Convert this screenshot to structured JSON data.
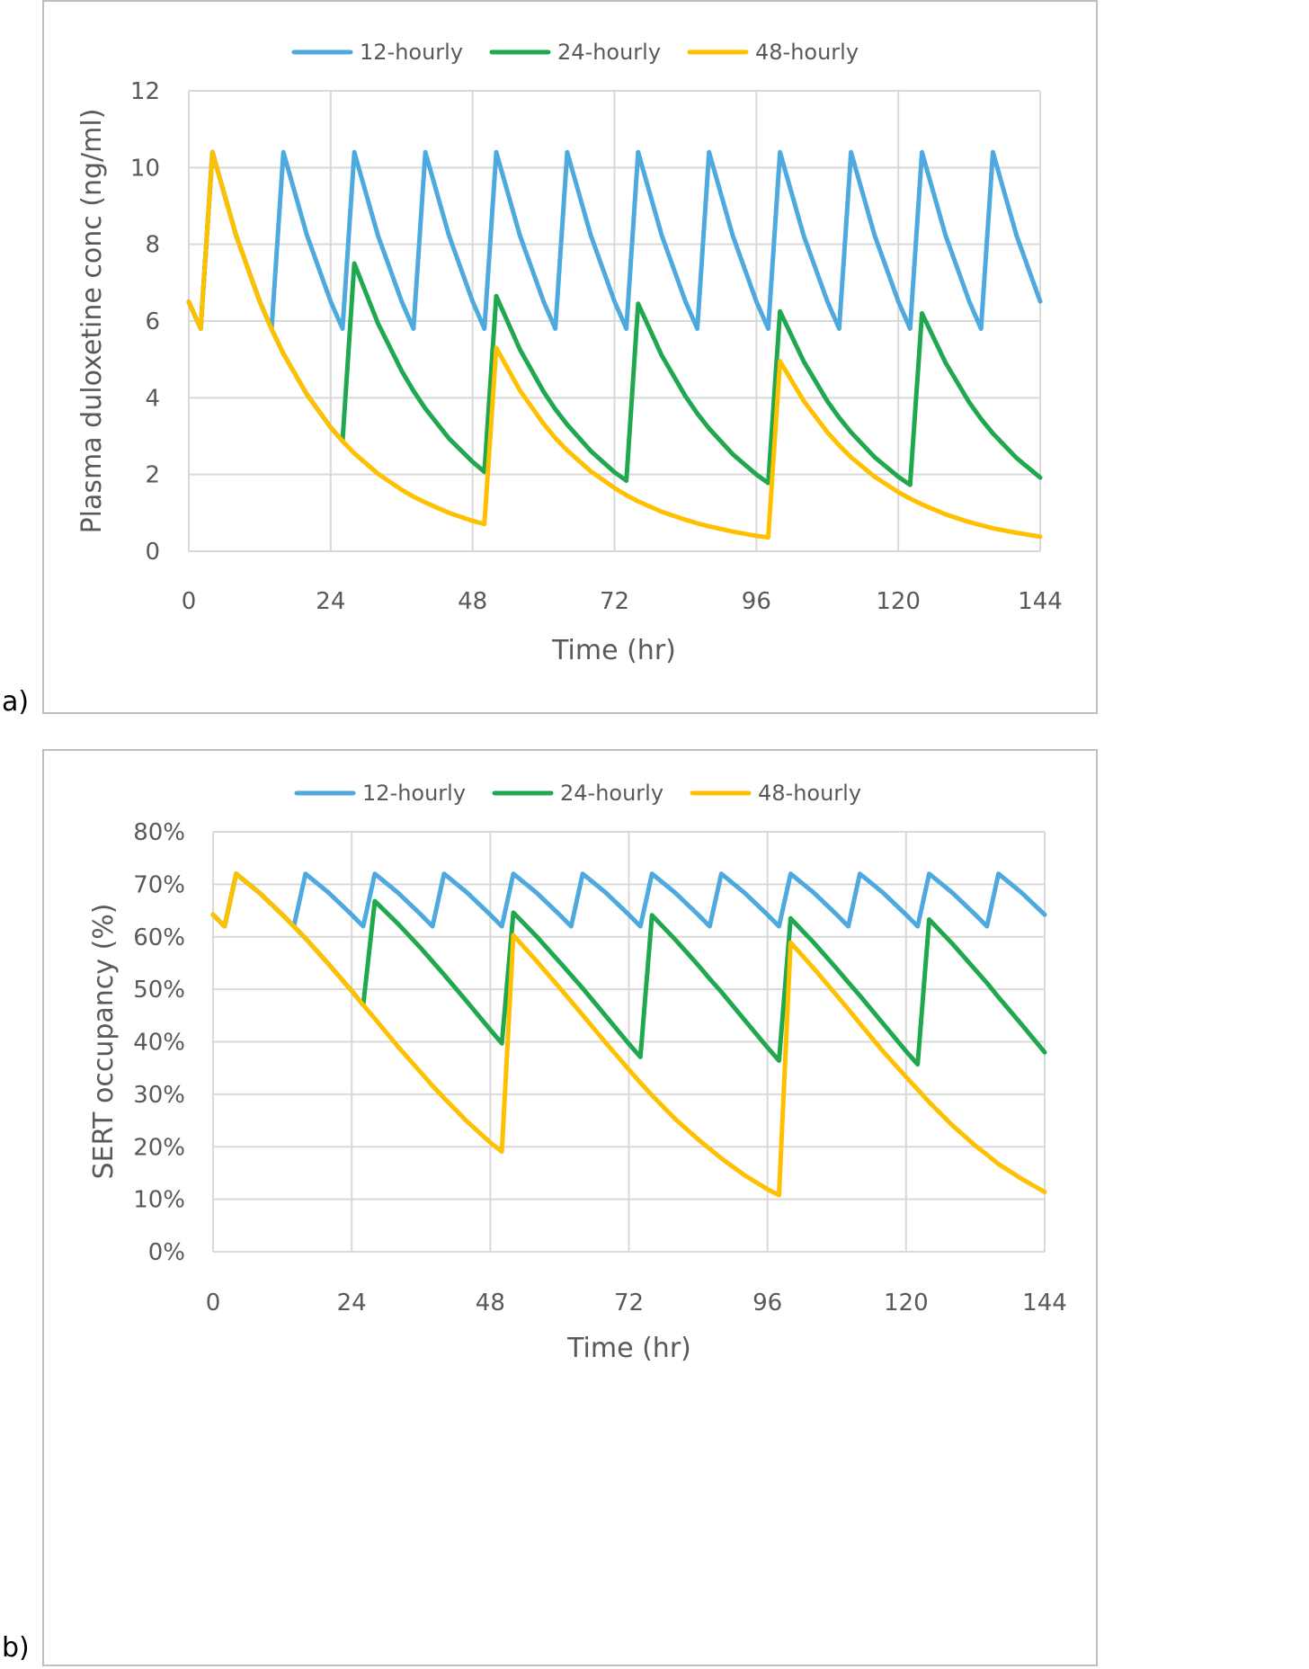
{
  "colors": {
    "12-hourly": "#4EA9DE",
    "24-hourly": "#1FA84D",
    "48-hourly": "#FFC000",
    "grid": "#D9D9D9",
    "border": "#BFBFBF"
  },
  "chart_data": [
    {
      "panel_label": "a)",
      "type": "line",
      "title": "",
      "xlabel": "Time (hr)",
      "ylabel": "Plasma duloxetine conc (ng/ml)",
      "xlim": [
        0,
        144
      ],
      "ylim": [
        0,
        12
      ],
      "xticks": [
        0,
        24,
        48,
        72,
        96,
        120,
        144
      ],
      "xtick_labels": [
        "0",
        "24",
        "48",
        "72",
        "96",
        "120",
        "144"
      ],
      "yticks": [
        0,
        2,
        4,
        6,
        8,
        10,
        12
      ],
      "ytick_labels": [
        "0",
        "2",
        "4",
        "6",
        "8",
        "10",
        "12"
      ],
      "grid": true,
      "legend": "top-center",
      "x": [
        0,
        2,
        4,
        8,
        12,
        14,
        16,
        20,
        24,
        26,
        28,
        32,
        36,
        38,
        40,
        44,
        48,
        50,
        52,
        56,
        60,
        62,
        64,
        68,
        72,
        74,
        76,
        80,
        84,
        86,
        88,
        92,
        96,
        98,
        100,
        104,
        108,
        110,
        112,
        116,
        120,
        122,
        124,
        128,
        132,
        134,
        136,
        140,
        144
      ],
      "series": [
        {
          "name": "12-hourly",
          "values": [
            6.5,
            5.8,
            10.4,
            8.23,
            6.51,
            5.8,
            10.4,
            8.23,
            6.51,
            5.8,
            10.4,
            8.23,
            6.51,
            5.8,
            10.4,
            8.23,
            6.51,
            5.8,
            10.4,
            8.23,
            6.51,
            5.8,
            10.4,
            8.23,
            6.51,
            5.8,
            10.4,
            8.23,
            6.51,
            5.8,
            10.4,
            8.23,
            6.51,
            5.8,
            10.4,
            8.23,
            6.51,
            5.8,
            10.4,
            8.23,
            6.51,
            5.8,
            10.4,
            8.23,
            6.51,
            5.8,
            10.4,
            8.23,
            6.51
          ]
        },
        {
          "name": "24-hourly",
          "values": [
            6.5,
            5.8,
            10.4,
            8.23,
            6.51,
            5.79,
            5.15,
            4.08,
            3.23,
            2.87,
            7.5,
            5.94,
            4.7,
            4.18,
            3.72,
            2.94,
            2.33,
            2.07,
            6.65,
            5.26,
            4.16,
            3.7,
            3.3,
            2.61,
            2.06,
            1.84,
            6.45,
            5.1,
            4.04,
            3.59,
            3.2,
            2.53,
            2.0,
            1.78,
            6.25,
            4.95,
            3.91,
            3.48,
            3.1,
            2.45,
            1.94,
            1.73,
            6.2,
            4.91,
            3.88,
            3.45,
            3.07,
            2.43,
            1.92
          ]
        },
        {
          "name": "48-hourly",
          "values": [
            6.5,
            5.8,
            10.4,
            8.23,
            6.51,
            5.79,
            5.15,
            4.08,
            3.23,
            2.87,
            2.55,
            2.02,
            1.6,
            1.42,
            1.27,
            1.0,
            0.79,
            0.71,
            5.3,
            4.19,
            3.32,
            2.95,
            2.63,
            2.08,
            1.65,
            1.46,
            1.3,
            1.03,
            0.82,
            0.73,
            0.65,
            0.51,
            0.4,
            0.36,
            4.95,
            3.92,
            3.1,
            2.76,
            2.45,
            1.94,
            1.54,
            1.37,
            1.22,
            0.96,
            0.76,
            0.68,
            0.6,
            0.48,
            0.38
          ]
        }
      ]
    },
    {
      "panel_label": "b)",
      "type": "line",
      "title": "",
      "xlabel": "Time (hr)",
      "ylabel": "SERT occupancy (%)",
      "xlim": [
        0,
        144
      ],
      "ylim": [
        0,
        80
      ],
      "xticks": [
        0,
        24,
        48,
        72,
        96,
        120,
        144
      ],
      "xtick_labels": [
        "0",
        "24",
        "48",
        "72",
        "96",
        "120",
        "144"
      ],
      "yticks": [
        0,
        10,
        20,
        30,
        40,
        50,
        60,
        70,
        80
      ],
      "ytick_labels": [
        "0%",
        "10%",
        "20%",
        "30%",
        "40%",
        "50%",
        "60%",
        "70%",
        "80%"
      ],
      "grid": true,
      "legend": "top-center",
      "x": [
        0,
        2,
        4,
        8,
        12,
        14,
        16,
        20,
        24,
        26,
        28,
        32,
        36,
        38,
        40,
        44,
        48,
        50,
        52,
        56,
        60,
        62,
        64,
        68,
        72,
        74,
        76,
        80,
        84,
        86,
        88,
        92,
        96,
        98,
        100,
        104,
        108,
        110,
        112,
        116,
        120,
        122,
        124,
        128,
        132,
        134,
        136,
        140,
        144
      ],
      "series": [
        {
          "name": "12-hourly",
          "values": [
            64.2,
            62.0,
            72.0,
            68.4,
            64.2,
            62.0,
            72.0,
            68.4,
            64.2,
            62.0,
            72.0,
            68.4,
            64.2,
            62.0,
            72.0,
            68.4,
            64.2,
            62.0,
            72.0,
            68.4,
            64.2,
            62.0,
            72.0,
            68.4,
            64.2,
            62.0,
            72.0,
            68.4,
            64.2,
            62.0,
            72.0,
            68.4,
            64.2,
            62.0,
            72.0,
            68.4,
            64.2,
            62.0,
            72.0,
            68.4,
            64.2,
            62.0,
            72.0,
            68.4,
            64.2,
            62.0,
            72.0,
            68.4,
            64.2
          ]
        },
        {
          "name": "24-hourly",
          "values": [
            64.2,
            62.0,
            72.0,
            68.4,
            64.2,
            62.0,
            59.7,
            54.8,
            49.7,
            47.0,
            66.8,
            62.5,
            57.8,
            55.3,
            52.8,
            47.6,
            42.3,
            39.7,
            64.6,
            60.1,
            55.2,
            52.7,
            50.2,
            44.9,
            39.6,
            37.1,
            64.1,
            59.5,
            54.6,
            52.0,
            49.5,
            44.2,
            38.9,
            36.4,
            63.5,
            58.9,
            53.9,
            51.3,
            48.8,
            43.5,
            38.2,
            35.7,
            63.3,
            58.7,
            53.7,
            51.2,
            48.5,
            43.3,
            38.0
          ]
        },
        {
          "name": "48-hourly",
          "values": [
            64.2,
            62.0,
            72.0,
            68.4,
            64.2,
            62.0,
            59.7,
            54.8,
            49.7,
            47.0,
            44.4,
            39.1,
            34.1,
            31.6,
            29.3,
            24.8,
            20.8,
            19.1,
            60.3,
            55.4,
            50.3,
            47.7,
            45.1,
            39.8,
            34.7,
            32.2,
            29.8,
            25.3,
            21.4,
            19.6,
            17.8,
            14.6,
            11.9,
            10.8,
            58.9,
            54.0,
            48.8,
            46.2,
            43.5,
            38.2,
            33.3,
            30.9,
            28.5,
            24.1,
            20.2,
            18.5,
            16.7,
            13.9,
            11.4
          ]
        }
      ]
    }
  ]
}
